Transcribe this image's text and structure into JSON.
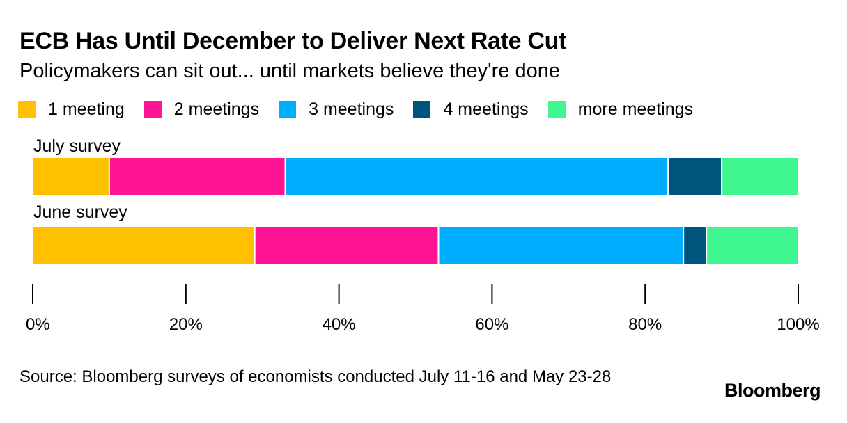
{
  "chart_data": {
    "type": "bar",
    "orientation": "horizontal",
    "stacked": true,
    "title": "ECB Has Until December to Deliver Next Rate Cut",
    "subtitle": "Policymakers can sit out... until markets believe they're done",
    "categories": [
      "July survey",
      "June survey"
    ],
    "series": [
      {
        "name": "1 meeting",
        "color": "#FFC000",
        "values": [
          10,
          29
        ]
      },
      {
        "name": "2 meetings",
        "color": "#FF1493",
        "values": [
          23,
          24
        ]
      },
      {
        "name": "3 meetings",
        "color": "#00AEFF",
        "values": [
          50,
          32
        ]
      },
      {
        "name": "4 meetings",
        "color": "#00557F",
        "values": [
          7,
          3
        ]
      },
      {
        "name": "more meetings",
        "color": "#3EF58F",
        "values": [
          10,
          12
        ]
      }
    ],
    "xlim": [
      0,
      100
    ],
    "ticks": [
      0,
      20,
      40,
      60,
      80,
      100
    ],
    "tick_labels": [
      "0%",
      "20%",
      "40%",
      "60%",
      "80%",
      "100%"
    ],
    "xlabel": "",
    "ylabel": "",
    "legend_position": "top",
    "grid": false
  },
  "footer": {
    "source": "Source: Bloomberg surveys of economists conducted July 11-16 and May 23-28",
    "brand": "Bloomberg"
  }
}
